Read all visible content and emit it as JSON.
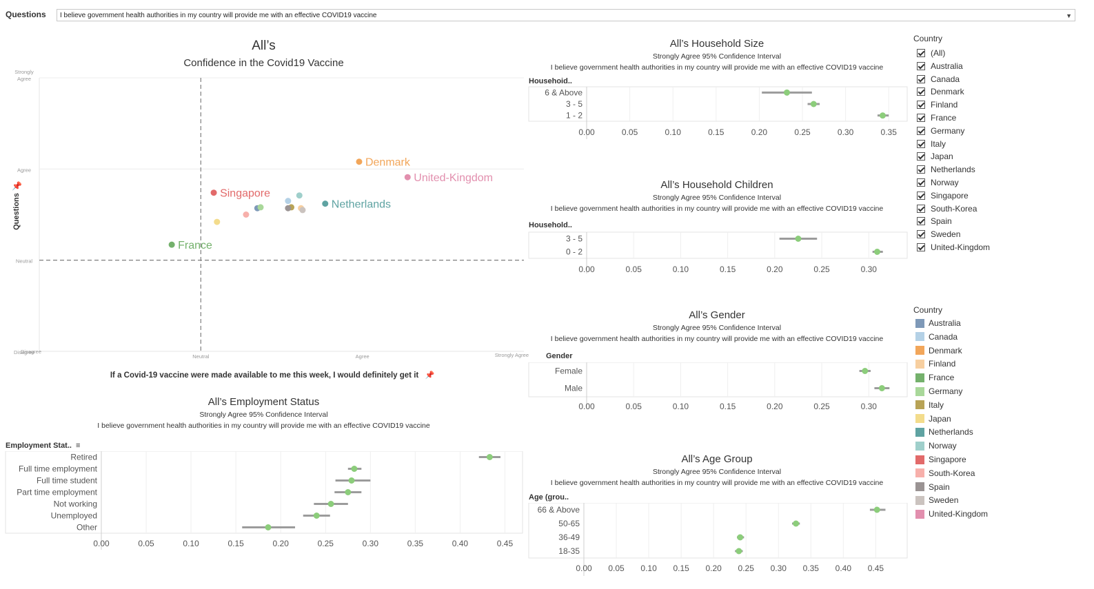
{
  "filter": {
    "label": "Questions",
    "value": "I believe government health authorities in my country will provide me with an effective COVID19 vaccine"
  },
  "scatter": {
    "title": "All’s",
    "subtitle": "Confidence  in the Covid19 Vaccine",
    "x_label": "If a Covid-19 vaccine were made available to me this week, I would definitely get it",
    "y_label": "Questions"
  },
  "panels": {
    "household_size": {
      "title": "All’s Household Size",
      "ci": "Strongly Agree 95% Confidence Interval",
      "question": "I believe government health authorities in my country will provide me with an effective COVID19 vaccine",
      "header": "Househoid.."
    },
    "household_children": {
      "title": "All’s Household Children",
      "ci": "Strongly Agree 95% Confidence Interval",
      "question": "I believe government health authorities in my country will provide me with an effective COVID19 vaccine",
      "header": "Household.."
    },
    "gender": {
      "title": "All’s Gender",
      "ci": "Strongly Agree 95% Confidence Interval",
      "question": "I believe government health authorities in my country will provide me with an effective COVID19 vaccine",
      "header": "Gender"
    },
    "age_group": {
      "title": "All’s Age Group",
      "ci": "Strongly Agree 95% Confidence Interval",
      "question": "I believe government health authorities in my country will provide me with an effective COVID19 vaccine",
      "header": "Age (grou.."
    },
    "employment": {
      "title": "All’s Employment Status",
      "ci": "Strongly Agree 95% Confidence Interval",
      "question": "I believe government health authorities in my country will provide me with an effective COVID19 vaccine",
      "header": "Employment Stat.."
    }
  },
  "filter_legend": {
    "title": "Country",
    "items": [
      "(All)",
      "Australia",
      "Canada",
      "Denmark",
      "Finland",
      "France",
      "Germany",
      "Italy",
      "Japan",
      "Netherlands",
      "Norway",
      "Singapore",
      "South-Korea",
      "Spain",
      "Sweden",
      "United-Kingdom"
    ]
  },
  "color_legend": {
    "title": "Country",
    "items": [
      {
        "name": "Australia",
        "color": "#7e99b8"
      },
      {
        "name": "Canada",
        "color": "#b4d1e6"
      },
      {
        "name": "Denmark",
        "color": "#f2a65a"
      },
      {
        "name": "Finland",
        "color": "#f7cfa0"
      },
      {
        "name": "France",
        "color": "#74b16c"
      },
      {
        "name": "Germany",
        "color": "#a9d89a"
      },
      {
        "name": "Italy",
        "color": "#b8a356"
      },
      {
        "name": "Japan",
        "color": "#f3dc8c"
      },
      {
        "name": "Netherlands",
        "color": "#5fa3a2"
      },
      {
        "name": "Norway",
        "color": "#9fcfcb"
      },
      {
        "name": "Singapore",
        "color": "#e26a6a"
      },
      {
        "name": "South-Korea",
        "color": "#f7b0ab"
      },
      {
        "name": "Spain",
        "color": "#9a9393"
      },
      {
        "name": "Sweden",
        "color": "#cbc3bf"
      },
      {
        "name": "United-Kingdom",
        "color": "#e28fae"
      }
    ]
  },
  "chart_data": [
    {
      "id": "scatter",
      "type": "scatter",
      "x_ticks": [
        "Disagree",
        "Neutral",
        "Agree",
        "Strongly Agree"
      ],
      "y_ticks": [
        "Disagree",
        "Neutral",
        "Agree",
        "Strongly Agree"
      ],
      "xlim": [
        0,
        3
      ],
      "ylim": [
        0,
        3
      ],
      "reference_lines": {
        "x": 1,
        "y": 1
      },
      "points": [
        {
          "name": "Denmark",
          "x": 1.98,
          "y": 2.08,
          "color": "#f2a65a",
          "label": "Denmark"
        },
        {
          "name": "United-Kingdom",
          "x": 2.28,
          "y": 1.91,
          "color": "#e28fae",
          "label": "United-Kingdom"
        },
        {
          "name": "Singapore",
          "x": 1.08,
          "y": 1.74,
          "color": "#e26a6a",
          "label": "Singapore"
        },
        {
          "name": "Netherlands",
          "x": 1.77,
          "y": 1.62,
          "color": "#5fa3a2",
          "label": "Netherlands"
        },
        {
          "name": "France",
          "x": 0.82,
          "y": 1.17,
          "color": "#74b16c",
          "label": "France"
        },
        {
          "name": "Canada",
          "x": 1.54,
          "y": 1.65,
          "color": "#b4d1e6",
          "label": ""
        },
        {
          "name": "Norway",
          "x": 1.61,
          "y": 1.71,
          "color": "#9fcfcb",
          "label": ""
        },
        {
          "name": "Australia",
          "x": 1.35,
          "y": 1.57,
          "color": "#7e99b8",
          "label": ""
        },
        {
          "name": "Germany",
          "x": 1.37,
          "y": 1.58,
          "color": "#a9d89a",
          "label": ""
        },
        {
          "name": "Italy",
          "x": 1.56,
          "y": 1.58,
          "color": "#b8a356",
          "label": ""
        },
        {
          "name": "Spain",
          "x": 1.54,
          "y": 1.57,
          "color": "#9a9393",
          "label": ""
        },
        {
          "name": "Finland",
          "x": 1.62,
          "y": 1.57,
          "color": "#f7cfa0",
          "label": ""
        },
        {
          "name": "Sweden",
          "x": 1.63,
          "y": 1.55,
          "color": "#cbc3bf",
          "label": ""
        },
        {
          "name": "South-Korea",
          "x": 1.28,
          "y": 1.5,
          "color": "#f7b0ab",
          "label": ""
        },
        {
          "name": "Japan",
          "x": 1.1,
          "y": 1.42,
          "color": "#f3dc8c",
          "label": ""
        }
      ]
    },
    {
      "id": "household_size",
      "type": "errorbar",
      "categories": [
        "6 & Above",
        "3 - 5",
        "1 - 2"
      ],
      "values": [
        0.232,
        0.263,
        0.343
      ],
      "ci_low": [
        0.203,
        0.256,
        0.337
      ],
      "ci_high": [
        0.261,
        0.27,
        0.35
      ],
      "x_ticks": [
        0,
        0.05,
        0.1,
        0.15,
        0.2,
        0.25,
        0.3,
        0.35
      ],
      "xlim": [
        0,
        0.365
      ]
    },
    {
      "id": "household_children",
      "type": "errorbar",
      "categories": [
        "3 - 5",
        "0 - 2"
      ],
      "values": [
        0.225,
        0.309
      ],
      "ci_low": [
        0.205,
        0.304
      ],
      "ci_high": [
        0.245,
        0.315
      ],
      "x_ticks": [
        0,
        0.05,
        0.1,
        0.15,
        0.2,
        0.25,
        0.3
      ],
      "xlim": [
        0,
        0.335
      ]
    },
    {
      "id": "gender",
      "type": "errorbar",
      "categories": [
        "Female",
        "Male"
      ],
      "values": [
        0.296,
        0.314
      ],
      "ci_low": [
        0.29,
        0.306
      ],
      "ci_high": [
        0.302,
        0.322
      ],
      "x_ticks": [
        0,
        0.05,
        0.1,
        0.15,
        0.2,
        0.25,
        0.3
      ],
      "xlim": [
        0,
        0.335
      ]
    },
    {
      "id": "age_group",
      "type": "errorbar",
      "categories": [
        "66 & Above",
        "50-65",
        "36-49",
        "18-35"
      ],
      "values": [
        0.452,
        0.327,
        0.241,
        0.239
      ],
      "ci_low": [
        0.441,
        0.321,
        0.236,
        0.233
      ],
      "ci_high": [
        0.465,
        0.333,
        0.247,
        0.245
      ],
      "x_ticks": [
        0,
        0.05,
        0.1,
        0.15,
        0.2,
        0.25,
        0.3,
        0.35,
        0.4,
        0.45
      ],
      "xlim": [
        0,
        0.49
      ]
    },
    {
      "id": "employment",
      "type": "errorbar",
      "categories": [
        "Retired",
        "Full time employment",
        "Full time student",
        "Part time employment",
        "Not working",
        "Unemployed",
        "Other"
      ],
      "values": [
        0.433,
        0.282,
        0.279,
        0.275,
        0.256,
        0.24,
        0.186
      ],
      "ci_low": [
        0.421,
        0.275,
        0.261,
        0.26,
        0.237,
        0.225,
        0.157
      ],
      "ci_high": [
        0.445,
        0.29,
        0.3,
        0.29,
        0.275,
        0.255,
        0.216
      ],
      "x_ticks": [
        0,
        0.05,
        0.1,
        0.15,
        0.2,
        0.25,
        0.3,
        0.35,
        0.4,
        0.45
      ],
      "xlim": [
        0,
        0.465
      ]
    }
  ]
}
